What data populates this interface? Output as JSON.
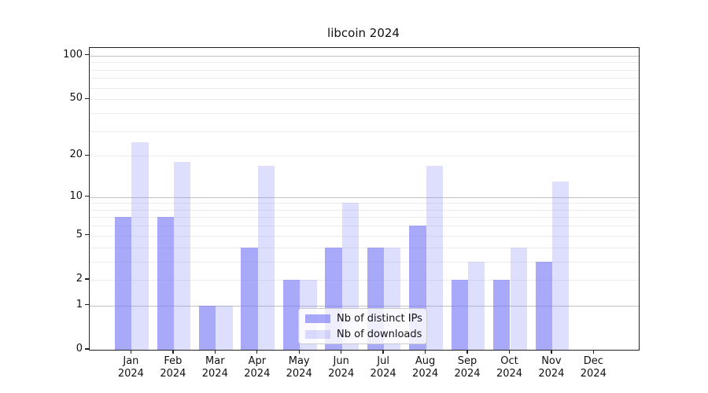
{
  "title": "libcoin 2024",
  "chart_data": {
    "type": "bar",
    "title": "libcoin 2024",
    "categories": [
      "Jan 2024",
      "Feb 2024",
      "Mar 2024",
      "Apr 2024",
      "May 2024",
      "Jun 2024",
      "Jul 2024",
      "Aug 2024",
      "Sep 2024",
      "Oct 2024",
      "Nov 2024",
      "Dec 2024"
    ],
    "series": [
      {
        "name": "Nb of distinct IPs",
        "color": "rgba(123,123,247,0.65)",
        "values": [
          7,
          7,
          1,
          4,
          2,
          4,
          4,
          6,
          2,
          2,
          3,
          0
        ]
      },
      {
        "name": "Nb of downloads",
        "color": "rgba(123,123,247,0.25)",
        "values": [
          25,
          18,
          1,
          17,
          2,
          9,
          4,
          17,
          3,
          4,
          13,
          0
        ]
      }
    ],
    "yscale": "log10(v+1)",
    "ylim": [
      0,
      113
    ],
    "yticks": [
      100,
      50,
      20,
      10,
      5,
      2,
      1,
      0
    ],
    "grid_minor": [
      2,
      3,
      4,
      5,
      6,
      7,
      8,
      9,
      20,
      30,
      40,
      50,
      60,
      70,
      80,
      90
    ],
    "grid_major": [
      1,
      10,
      100
    ],
    "grid": "on",
    "legend_position": "lower center",
    "xlabel": "",
    "ylabel": "",
    "bar_width_frac": 0.4
  },
  "colors": {
    "bar_base": "#7b7bf7",
    "grid_minor": "#ececec",
    "grid_major": "#c3c3c3",
    "spine": "#222222",
    "text": "#111111",
    "legend_border": "#cccccc"
  }
}
